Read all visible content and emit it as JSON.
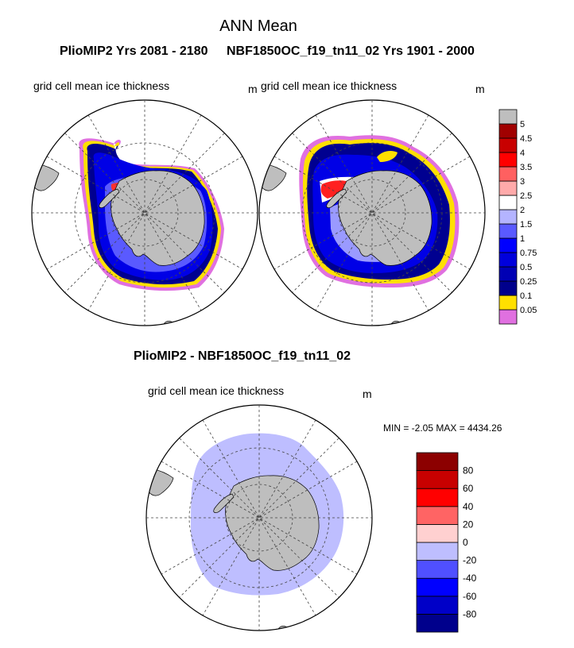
{
  "figure": {
    "title": "ANN Mean",
    "panel_left_header": "PlioMIP2  Yrs 2081 - 2180",
    "panel_right_header": "NBF1850OC_f19_tn11_02  Yrs 1901 - 2000",
    "panel_left_subtitle": "grid cell mean ice thickness",
    "panel_left_unit": "m",
    "panel_right_subtitle": "grid cell mean ice thickness",
    "panel_right_unit": "m",
    "diff_header": "PlioMIP2 - NBF1850OC_f19_tn11_02",
    "diff_subtitle": "grid cell mean ice thickness",
    "diff_unit": "m",
    "diff_minmax": "MIN =  -2.05 MAX = 4434.26"
  },
  "chart_data": [
    {
      "type": "heatmap",
      "projection": "south-polar-stereographic",
      "title": "PlioMIP2  Yrs 2081 - 2180",
      "subtitle": "grid cell mean ice thickness",
      "units": "m",
      "colorbar": {
        "levels": [
          "0.05",
          "0.1",
          "0.25",
          "0.5",
          "0.75",
          "1",
          "1.5",
          "2",
          "2.5",
          "3",
          "3.5",
          "4",
          "4.5",
          "5"
        ],
        "colors": [
          "#e070e0",
          "#ffe000",
          "#00008c",
          "#0000b4",
          "#0000dc",
          "#0000ff",
          "#5a5aff",
          "#b4b4ff",
          "#ffffff",
          "#ffaaaa",
          "#ff6060",
          "#ff0000",
          "#c80000",
          "#a00000",
          "#bebebe"
        ]
      }
    },
    {
      "type": "heatmap",
      "projection": "south-polar-stereographic",
      "title": "NBF1850OC_f19_tn11_02  Yrs 1901 - 2000",
      "subtitle": "grid cell mean ice thickness",
      "units": "m"
    },
    {
      "type": "heatmap",
      "projection": "south-polar-stereographic",
      "title": "PlioMIP2 - NBF1850OC_f19_tn11_02",
      "subtitle": "grid cell mean ice thickness",
      "units": "m",
      "min": -2.05,
      "max": 4434.26,
      "colorbar": {
        "levels": [
          "-80",
          "-60",
          "-40",
          "-20",
          "0",
          "20",
          "40",
          "60",
          "80"
        ],
        "colors": [
          "#00008c",
          "#0000c8",
          "#0000ff",
          "#5050ff",
          "#bebeff",
          "#ffd0d0",
          "#ff6464",
          "#ff0000",
          "#c80000",
          "#8c0000"
        ]
      }
    }
  ]
}
